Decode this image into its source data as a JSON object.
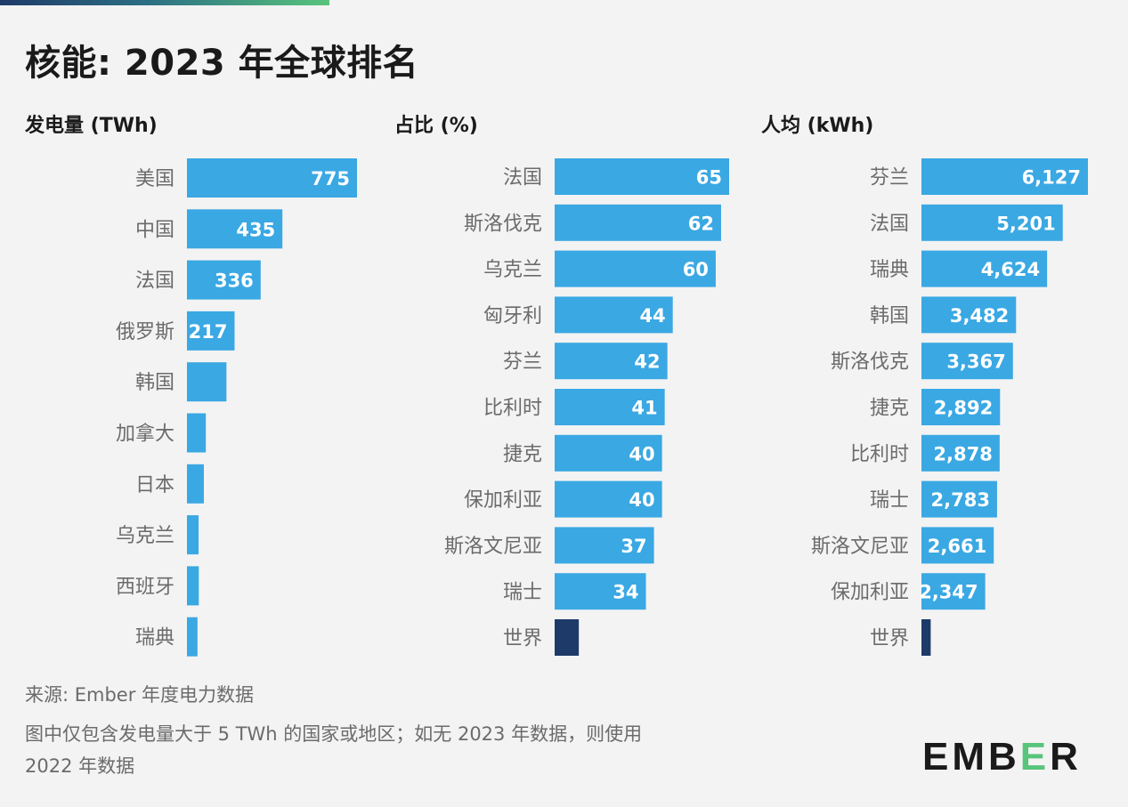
{
  "title": "核能: 2023 年全球排名",
  "colors": {
    "bar": "#3aa8e3",
    "world_bar": "#1e3a68",
    "label": "#6b6b6b",
    "value": "#ffffff"
  },
  "chart_data": [
    {
      "type": "bar",
      "orientation": "horizontal",
      "title": "发电量 (TWh)",
      "categories": [
        "美国",
        "中国",
        "法国",
        "俄罗斯",
        "韩国",
        "加拿大",
        "日本",
        "乌克兰",
        "西班牙",
        "瑞典"
      ],
      "values": [
        775,
        435,
        336,
        217,
        180,
        86,
        77,
        53,
        54,
        48
      ],
      "value_labels": [
        "775",
        "435",
        "336",
        "217",
        "",
        "",
        "",
        "",
        "",
        ""
      ],
      "xlim": [
        0,
        775
      ]
    },
    {
      "type": "bar",
      "orientation": "horizontal",
      "title": "占比 (%)",
      "categories": [
        "法国",
        "斯洛伐克",
        "乌克兰",
        "匈牙利",
        "芬兰",
        "比利时",
        "捷克",
        "保加利亚",
        "斯洛文尼亚",
        "瑞士",
        "世界"
      ],
      "values": [
        65,
        62,
        60,
        44,
        42,
        41,
        40,
        40,
        37,
        34,
        9
      ],
      "value_labels": [
        "65",
        "62",
        "60",
        "44",
        "42",
        "41",
        "40",
        "40",
        "37",
        "34",
        ""
      ],
      "xlim": [
        0,
        65
      ]
    },
    {
      "type": "bar",
      "orientation": "horizontal",
      "title": "人均 (kWh)",
      "categories": [
        "芬兰",
        "法国",
        "瑞典",
        "韩国",
        "斯洛伐克",
        "捷克",
        "比利时",
        "瑞士",
        "斯洛文尼亚",
        "保加利亚",
        "世界"
      ],
      "values": [
        6127,
        5201,
        4624,
        3482,
        3367,
        2892,
        2878,
        2783,
        2661,
        2347,
        340
      ],
      "value_labels": [
        "6,127",
        "5,201",
        "4,624",
        "3,482",
        "3,367",
        "2,892",
        "2,878",
        "2,783",
        "2,661",
        "2,347",
        ""
      ],
      "xlim": [
        0,
        6127
      ]
    }
  ],
  "footnotes": [
    "来源: Ember 年度电力数据",
    "图中仅包含发电量大于 5 TWh 的国家或地区；如无 2023 年数据，则使用",
    "2022 年数据"
  ],
  "logo": {
    "before": "EMB",
    "accent": "E",
    "after": "R"
  }
}
